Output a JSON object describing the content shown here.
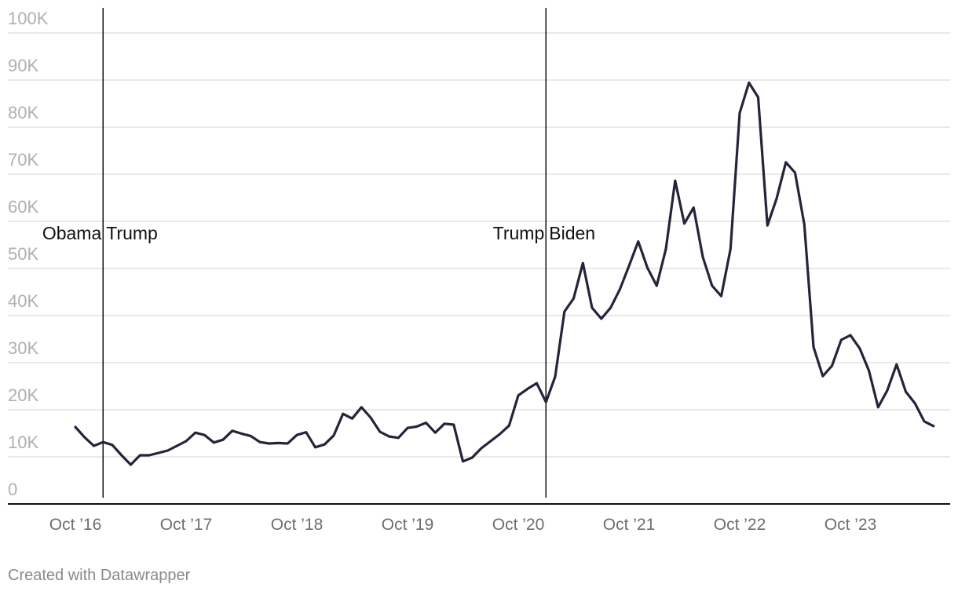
{
  "chart_data": {
    "type": "line",
    "title": "",
    "xlabel": "",
    "ylabel": "",
    "ylim": [
      0,
      100000
    ],
    "yticks": [
      {
        "value": 0,
        "label": "0"
      },
      {
        "value": 10000,
        "label": "10K"
      },
      {
        "value": 20000,
        "label": "20K"
      },
      {
        "value": 30000,
        "label": "30K"
      },
      {
        "value": 40000,
        "label": "40K"
      },
      {
        "value": 50000,
        "label": "50K"
      },
      {
        "value": 60000,
        "label": "60K"
      },
      {
        "value": 70000,
        "label": "70K"
      },
      {
        "value": 80000,
        "label": "80K"
      },
      {
        "value": 90000,
        "label": "90K"
      },
      {
        "value": 100000,
        "label": "100K"
      }
    ],
    "xlim": [
      "2016-06",
      "2024-09"
    ],
    "xticks": [
      {
        "date": "2016-10",
        "label": "Oct ’16"
      },
      {
        "date": "2017-10",
        "label": "Oct ’17"
      },
      {
        "date": "2018-10",
        "label": "Oct ’18"
      },
      {
        "date": "2019-10",
        "label": "Oct ’19"
      },
      {
        "date": "2020-10",
        "label": "Oct ’20"
      },
      {
        "date": "2021-10",
        "label": "Oct ’21"
      },
      {
        "date": "2022-10",
        "label": "Oct ’22"
      },
      {
        "date": "2023-10",
        "label": "Oct ’23"
      }
    ],
    "grid": true,
    "series": [
      {
        "color": "#27233a",
        "points": [
          [
            "2016-10",
            13000
          ],
          [
            "2016-11",
            10800
          ],
          [
            "2016-12",
            9000
          ],
          [
            "2017-01",
            9800
          ],
          [
            "2017-02",
            9200
          ],
          [
            "2017-03",
            7000
          ],
          [
            "2017-04",
            5000
          ],
          [
            "2017-05",
            7000
          ],
          [
            "2017-06",
            7000
          ],
          [
            "2017-07",
            7500
          ],
          [
            "2017-08",
            8000
          ],
          [
            "2017-09",
            9000
          ],
          [
            "2017-10",
            10000
          ],
          [
            "2017-11",
            11800
          ],
          [
            "2017-12",
            11300
          ],
          [
            "2018-01",
            9700
          ],
          [
            "2018-02",
            10300
          ],
          [
            "2018-03",
            12200
          ],
          [
            "2018-04",
            11600
          ],
          [
            "2018-05",
            11100
          ],
          [
            "2018-06",
            9800
          ],
          [
            "2018-07",
            9500
          ],
          [
            "2018-08",
            9600
          ],
          [
            "2018-09",
            9500
          ],
          [
            "2018-10",
            11300
          ],
          [
            "2018-11",
            11900
          ],
          [
            "2018-12",
            8700
          ],
          [
            "2019-01",
            9300
          ],
          [
            "2019-02",
            11200
          ],
          [
            "2019-03",
            15800
          ],
          [
            "2019-04",
            14800
          ],
          [
            "2019-05",
            17200
          ],
          [
            "2019-06",
            15000
          ],
          [
            "2019-07",
            12000
          ],
          [
            "2019-08",
            11000
          ],
          [
            "2019-09",
            10700
          ],
          [
            "2019-10",
            12800
          ],
          [
            "2019-11",
            13100
          ],
          [
            "2019-12",
            13900
          ],
          [
            "2020-01",
            11800
          ],
          [
            "2020-02",
            13700
          ],
          [
            "2020-03",
            13500
          ],
          [
            "2020-04",
            5700
          ],
          [
            "2020-05",
            6500
          ],
          [
            "2020-06",
            8500
          ],
          [
            "2020-07",
            10000
          ],
          [
            "2020-08",
            11500
          ],
          [
            "2020-09",
            13300
          ],
          [
            "2020-10",
            19700
          ],
          [
            "2020-11",
            21100
          ],
          [
            "2020-12",
            22300
          ],
          [
            "2021-01",
            18300
          ],
          [
            "2021-02",
            23700
          ],
          [
            "2021-03",
            37500
          ],
          [
            "2021-04",
            40300
          ],
          [
            "2021-05",
            47800
          ],
          [
            "2021-06",
            38300
          ],
          [
            "2021-07",
            36000
          ],
          [
            "2021-08",
            38300
          ],
          [
            "2021-09",
            42200
          ],
          [
            "2021-10",
            47200
          ],
          [
            "2021-11",
            52400
          ],
          [
            "2021-12",
            46800
          ],
          [
            "2022-01",
            43000
          ],
          [
            "2022-02",
            50800
          ],
          [
            "2022-03",
            65300
          ],
          [
            "2022-04",
            56200
          ],
          [
            "2022-05",
            59600
          ],
          [
            "2022-06",
            49100
          ],
          [
            "2022-07",
            43000
          ],
          [
            "2022-08",
            40800
          ],
          [
            "2022-09",
            50800
          ],
          [
            "2022-10",
            79700
          ],
          [
            "2022-11",
            86100
          ],
          [
            "2022-12",
            83000
          ],
          [
            "2023-01",
            55800
          ],
          [
            "2023-02",
            61500
          ],
          [
            "2023-03",
            69200
          ],
          [
            "2023-04",
            67000
          ],
          [
            "2023-05",
            56000
          ],
          [
            "2023-06",
            30000
          ],
          [
            "2023-07",
            23800
          ],
          [
            "2023-08",
            26000
          ],
          [
            "2023-09",
            31500
          ],
          [
            "2023-10",
            32500
          ],
          [
            "2023-11",
            29700
          ],
          [
            "2023-12",
            25000
          ],
          [
            "2024-01",
            17200
          ],
          [
            "2024-02",
            20800
          ],
          [
            "2024-03",
            26300
          ],
          [
            "2024-04",
            20500
          ],
          [
            "2024-05",
            18000
          ],
          [
            "2024-06",
            14200
          ],
          [
            "2024-07",
            13200
          ]
        ]
      }
    ],
    "annotations": [
      {
        "date": "2017-01",
        "left_label": "Obama",
        "right_label": "Trump"
      },
      {
        "date": "2021-01",
        "left_label": "Trump",
        "right_label": "Biden"
      }
    ],
    "credit": "Created with Datawrapper"
  }
}
